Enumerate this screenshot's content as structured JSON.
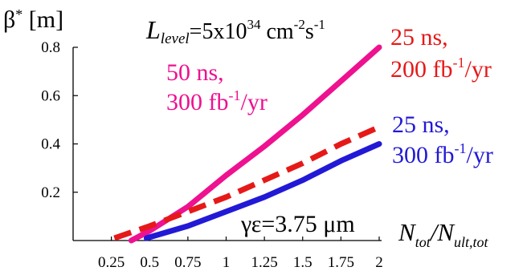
{
  "chart_data": {
    "type": "line",
    "y_axis_symbol": "β",
    "y_axis_symbol_sup": "*",
    "y_axis_unit": " [m]",
    "title_lhs": "L",
    "title_lhs_sub": "level",
    "title_rest": "=5x10",
    "title_exp": "34",
    "title_unit_a": " cm",
    "title_unit_a_exp": "-2",
    "title_unit_b": "s",
    "title_unit_b_exp": "-1",
    "x_label_n": "N",
    "x_label_n_sub": "tot",
    "x_label_slash": "/N",
    "x_label_d_sub": "ult,tot",
    "emittance_label": "γε=3.75 μm",
    "xlim": [
      0,
      2
    ],
    "ylim": [
      0,
      0.8
    ],
    "x_ticks": [
      {
        "value": 0.25,
        "label": "0.25"
      },
      {
        "value": 0.5,
        "label": "0.5"
      },
      {
        "value": 0.75,
        "label": "0.75"
      },
      {
        "value": 1,
        "label": "1"
      },
      {
        "value": 1.25,
        "label": "1.25"
      },
      {
        "value": 1.5,
        "label": "1.5"
      },
      {
        "value": 1.75,
        "label": "1.75"
      },
      {
        "value": 2,
        "label": "2"
      }
    ],
    "y_ticks": [
      {
        "value": 0.2,
        "label": "0.2"
      },
      {
        "value": 0.4,
        "label": "0.4"
      },
      {
        "value": 0.6,
        "label": "0.6"
      },
      {
        "value": 0.8,
        "label": "0.8"
      }
    ],
    "series": [
      {
        "id": "50ns-300",
        "label_line1": "50 ns,",
        "label_line2_pre": "300 fb",
        "label_line2_sup": "-1",
        "label_line2_post": "/yr",
        "color": "#ee1190",
        "style": "solid",
        "x": [
          0.38,
          0.5,
          0.75,
          1.0,
          1.25,
          1.5,
          1.75,
          2.0
        ],
        "y": [
          0.0,
          0.04,
          0.14,
          0.27,
          0.39,
          0.52,
          0.66,
          0.8
        ]
      },
      {
        "id": "25ns-200",
        "label_line1": "25 ns,",
        "label_line2_pre": "200 fb",
        "label_line2_sup": "-1",
        "label_line2_post": "/yr",
        "color": "#e61919",
        "style": "dashed",
        "x": [
          0.27,
          0.5,
          0.75,
          1.0,
          1.25,
          1.5,
          1.75,
          2.0
        ],
        "y": [
          0.01,
          0.06,
          0.12,
          0.18,
          0.25,
          0.32,
          0.4,
          0.47
        ]
      },
      {
        "id": "25ns-300",
        "label_line1": "25 ns,",
        "label_line2_pre": "300 fb",
        "label_line2_sup": "-1",
        "label_line2_post": "/yr",
        "color": "#2219d6",
        "style": "solid",
        "x": [
          0.48,
          0.75,
          1.0,
          1.25,
          1.5,
          1.75,
          2.0
        ],
        "y": [
          0.01,
          0.06,
          0.12,
          0.18,
          0.25,
          0.33,
          0.4
        ]
      }
    ]
  }
}
